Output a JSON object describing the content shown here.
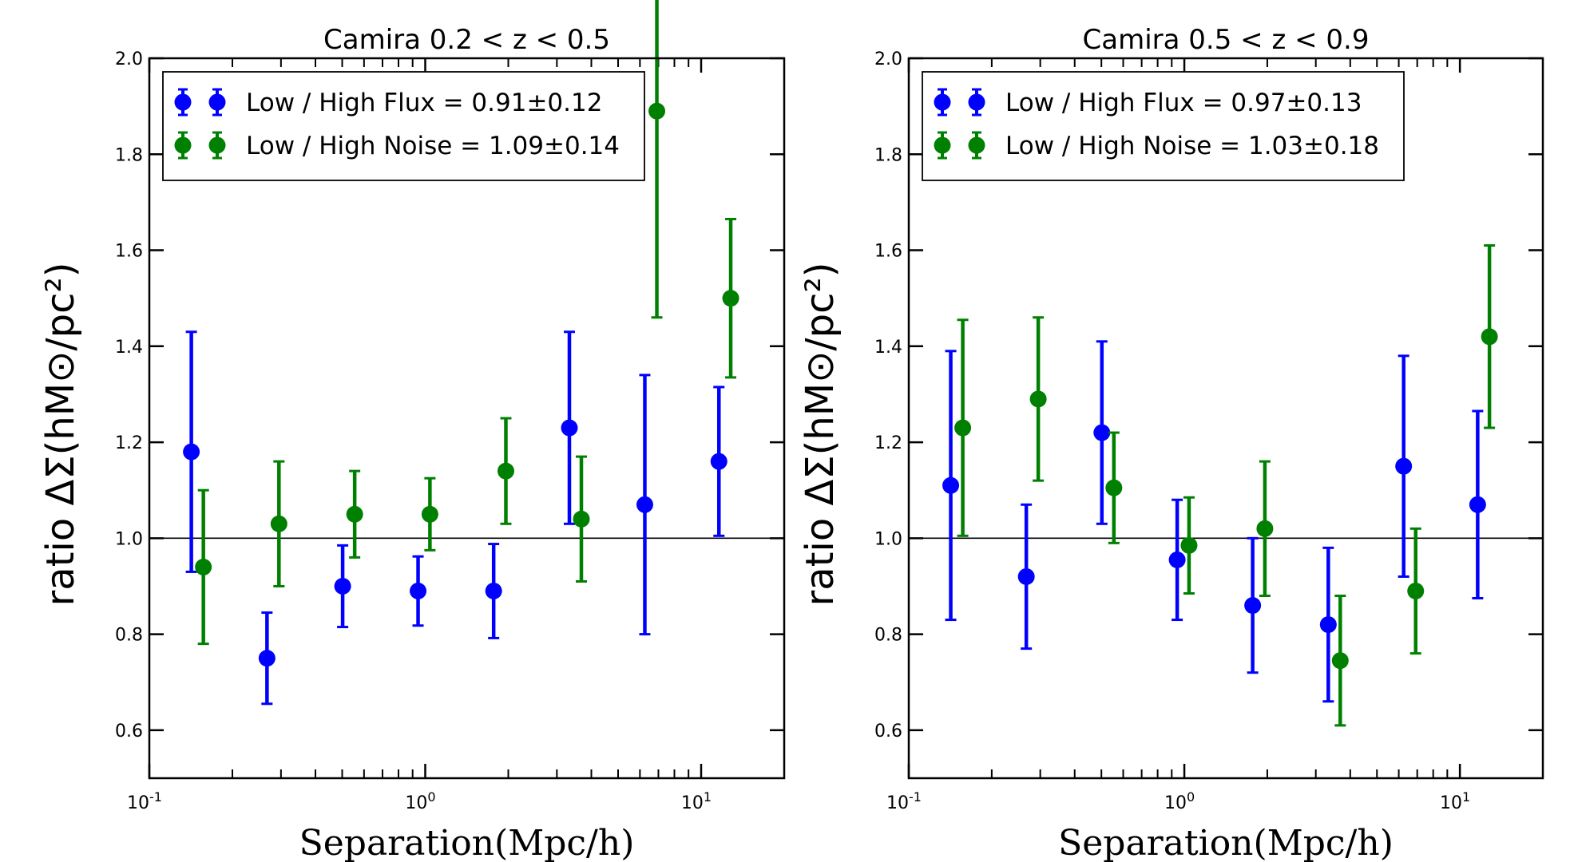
{
  "chart_data": [
    {
      "type": "scatter",
      "title": "Camira  0.2 < z < 0.5",
      "xlabel": "Separation(Mpc/h)",
      "ylabel": "ratio ΔΣ(hM⊙/pc²)",
      "xscale": "log",
      "xlim": [
        0.1,
        20
      ],
      "ylim": [
        0.5,
        2.0
      ],
      "yticks": [
        "0.6",
        "0.8",
        "1.0",
        "1.2",
        "1.4",
        "1.6",
        "1.8",
        "2.0"
      ],
      "xticks": [
        {
          "base": "10",
          "exp": "-1",
          "value": 0.1
        },
        {
          "base": "10",
          "exp": "0",
          "value": 1
        },
        {
          "base": "10",
          "exp": "1",
          "value": 10
        }
      ],
      "reference_line": 1.0,
      "grid": false,
      "legend_position": "top-left",
      "series": [
        {
          "name": "Low / High Flux = 0.91±0.12",
          "color": "#0000ff",
          "x": [
            0.142,
            0.267,
            0.502,
            0.942,
            1.77,
            3.33,
            6.25,
            11.6
          ],
          "y": [
            1.18,
            0.75,
            0.9,
            0.89,
            0.89,
            1.23,
            1.07,
            1.16
          ],
          "err": [
            0.25,
            0.095,
            0.085,
            0.072,
            0.098,
            0.2,
            0.27,
            0.155
          ]
        },
        {
          "name": "Low / High Noise = 1.09±0.14",
          "color": "#008000",
          "x": [
            0.157,
            0.295,
            0.555,
            1.04,
            1.96,
            3.68,
            6.91,
            12.8
          ],
          "y": [
            0.94,
            1.03,
            1.05,
            1.05,
            1.14,
            1.04,
            1.89,
            1.5
          ],
          "err": [
            0.16,
            0.13,
            0.09,
            0.075,
            0.11,
            0.13,
            0.43,
            0.165
          ]
        }
      ]
    },
    {
      "type": "scatter",
      "title": "Camira  0.5 < z < 0.9",
      "xlabel": "Separation(Mpc/h)",
      "ylabel": "ratio ΔΣ(hM⊙/pc²)",
      "xscale": "log",
      "xlim": [
        0.1,
        20
      ],
      "ylim": [
        0.5,
        2.0
      ],
      "yticks": [
        "0.6",
        "0.8",
        "1.0",
        "1.2",
        "1.4",
        "1.6",
        "1.8",
        "2.0"
      ],
      "xticks": [
        {
          "base": "10",
          "exp": "-1",
          "value": 0.1
        },
        {
          "base": "10",
          "exp": "0",
          "value": 1
        },
        {
          "base": "10",
          "exp": "1",
          "value": 10
        }
      ],
      "reference_line": 1.0,
      "grid": false,
      "legend_position": "top-left",
      "series": [
        {
          "name": "Low / High Flux = 0.97±0.13",
          "color": "#0000ff",
          "x": [
            0.142,
            0.267,
            0.502,
            0.942,
            1.77,
            3.33,
            6.25,
            11.6
          ],
          "y": [
            1.11,
            0.92,
            1.22,
            0.955,
            0.86,
            0.82,
            1.15,
            1.07
          ],
          "err": [
            0.28,
            0.15,
            0.19,
            0.125,
            0.14,
            0.16,
            0.23,
            0.195
          ]
        },
        {
          "name": "Low / High Noise = 1.03±0.18",
          "color": "#008000",
          "x": [
            0.157,
            0.295,
            0.555,
            1.04,
            1.96,
            3.68,
            6.91,
            12.8
          ],
          "y": [
            1.23,
            1.29,
            1.105,
            0.985,
            1.02,
            0.745,
            0.89,
            1.42
          ],
          "err": [
            0.225,
            0.17,
            0.115,
            0.1,
            0.14,
            0.135,
            0.13,
            0.19
          ]
        }
      ]
    }
  ]
}
